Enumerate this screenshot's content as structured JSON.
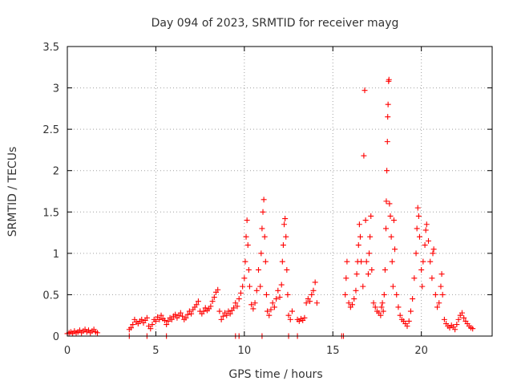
{
  "chart_data": {
    "type": "scatter",
    "title": "Day 094 of 2023, SRMTID for receiver mayg",
    "xlabel": "GPS time / hours",
    "ylabel": "SRMTID / TECUs",
    "xlim": [
      0,
      24
    ],
    "ylim": [
      0,
      3.5
    ],
    "xticks": [
      0,
      5,
      10,
      15,
      20
    ],
    "yticks": [
      0,
      0.5,
      1,
      1.5,
      2,
      2.5,
      3,
      3.5
    ],
    "xtick_labels": [
      "0",
      "5",
      "10",
      "15",
      "20"
    ],
    "ytick_labels": [
      "0",
      "0.5",
      "1",
      "1.5",
      "2",
      "2.5",
      "3",
      "3.5"
    ],
    "grid": true,
    "marker": "+",
    "color": "#ff0000",
    "series": [
      {
        "name": "SRMTID",
        "points": [
          [
            0.0,
            0.03
          ],
          [
            0.1,
            0.04
          ],
          [
            0.2,
            0.05
          ],
          [
            0.3,
            0.03
          ],
          [
            0.4,
            0.06
          ],
          [
            0.5,
            0.04
          ],
          [
            0.6,
            0.05
          ],
          [
            0.7,
            0.07
          ],
          [
            0.8,
            0.04
          ],
          [
            0.9,
            0.06
          ],
          [
            1.0,
            0.08
          ],
          [
            1.1,
            0.05
          ],
          [
            1.2,
            0.07
          ],
          [
            1.3,
            0.04
          ],
          [
            1.4,
            0.06
          ],
          [
            1.5,
            0.08
          ],
          [
            1.6,
            0.05
          ],
          [
            1.7,
            0.04
          ],
          [
            3.5,
            0.0
          ],
          [
            4.5,
            0.0
          ],
          [
            5.6,
            0.0
          ],
          [
            3.5,
            0.08
          ],
          [
            3.6,
            0.1
          ],
          [
            3.7,
            0.14
          ],
          [
            3.8,
            0.2
          ],
          [
            3.9,
            0.17
          ],
          [
            4.0,
            0.15
          ],
          [
            4.1,
            0.18
          ],
          [
            4.2,
            0.2
          ],
          [
            4.3,
            0.16
          ],
          [
            4.4,
            0.19
          ],
          [
            4.5,
            0.22
          ],
          [
            4.6,
            0.12
          ],
          [
            4.7,
            0.09
          ],
          [
            4.8,
            0.14
          ],
          [
            4.9,
            0.2
          ],
          [
            5.0,
            0.18
          ],
          [
            5.1,
            0.23
          ],
          [
            5.2,
            0.2
          ],
          [
            5.3,
            0.25
          ],
          [
            5.4,
            0.21
          ],
          [
            5.5,
            0.19
          ],
          [
            5.6,
            0.14
          ],
          [
            5.7,
            0.18
          ],
          [
            5.8,
            0.22
          ],
          [
            5.9,
            0.2
          ],
          [
            6.0,
            0.24
          ],
          [
            6.1,
            0.26
          ],
          [
            6.2,
            0.22
          ],
          [
            6.3,
            0.25
          ],
          [
            6.4,
            0.28
          ],
          [
            6.5,
            0.24
          ],
          [
            6.6,
            0.2
          ],
          [
            6.7,
            0.22
          ],
          [
            6.8,
            0.26
          ],
          [
            6.9,
            0.3
          ],
          [
            7.0,
            0.27
          ],
          [
            7.1,
            0.32
          ],
          [
            7.2,
            0.35
          ],
          [
            7.3,
            0.38
          ],
          [
            7.4,
            0.42
          ],
          [
            7.5,
            0.3
          ],
          [
            7.6,
            0.27
          ],
          [
            7.7,
            0.3
          ],
          [
            7.8,
            0.34
          ],
          [
            7.9,
            0.31
          ],
          [
            8.0,
            0.33
          ],
          [
            8.1,
            0.36
          ],
          [
            8.2,
            0.42
          ],
          [
            8.3,
            0.47
          ],
          [
            8.4,
            0.53
          ],
          [
            8.5,
            0.56
          ],
          [
            8.6,
            0.3
          ],
          [
            8.7,
            0.2
          ],
          [
            8.8,
            0.24
          ],
          [
            8.9,
            0.28
          ],
          [
            9.0,
            0.25
          ],
          [
            9.1,
            0.3
          ],
          [
            9.2,
            0.27
          ],
          [
            9.3,
            0.31
          ],
          [
            9.4,
            0.34
          ],
          [
            9.5,
            0.4
          ],
          [
            9.6,
            0.36
          ],
          [
            9.7,
            0.45
          ],
          [
            9.8,
            0.52
          ],
          [
            9.9,
            0.6
          ],
          [
            10.0,
            0.7
          ],
          [
            10.05,
            0.9
          ],
          [
            10.1,
            1.2
          ],
          [
            10.15,
            1.4
          ],
          [
            10.2,
            1.1
          ],
          [
            10.25,
            0.8
          ],
          [
            10.3,
            0.6
          ],
          [
            10.4,
            0.38
          ],
          [
            10.5,
            0.33
          ],
          [
            10.6,
            0.4
          ],
          [
            10.7,
            0.55
          ],
          [
            10.8,
            0.8
          ],
          [
            10.9,
            0.6
          ],
          [
            10.95,
            1.0
          ],
          [
            11.0,
            1.3
          ],
          [
            11.05,
            1.5
          ],
          [
            11.1,
            1.65
          ],
          [
            11.15,
            1.2
          ],
          [
            11.2,
            0.9
          ],
          [
            11.25,
            0.5
          ],
          [
            11.3,
            0.3
          ],
          [
            11.4,
            0.25
          ],
          [
            11.5,
            0.32
          ],
          [
            11.6,
            0.4
          ],
          [
            11.7,
            0.35
          ],
          [
            11.8,
            0.45
          ],
          [
            11.9,
            0.55
          ],
          [
            12.0,
            0.47
          ],
          [
            12.1,
            0.62
          ],
          [
            12.15,
            0.9
          ],
          [
            12.2,
            1.1
          ],
          [
            12.25,
            1.35
          ],
          [
            12.3,
            1.42
          ],
          [
            12.35,
            1.2
          ],
          [
            12.4,
            0.8
          ],
          [
            12.45,
            0.5
          ],
          [
            12.5,
            0.25
          ],
          [
            12.6,
            0.2
          ],
          [
            12.7,
            0.3
          ],
          [
            9.5,
            0.0
          ],
          [
            9.7,
            0.0
          ],
          [
            11.0,
            0.0
          ],
          [
            12.5,
            0.0
          ],
          [
            13.0,
            0.0
          ],
          [
            13.0,
            0.2
          ],
          [
            13.1,
            0.18
          ],
          [
            13.2,
            0.21
          ],
          [
            13.3,
            0.19
          ],
          [
            13.4,
            0.22
          ],
          [
            13.5,
            0.4
          ],
          [
            13.6,
            0.45
          ],
          [
            13.7,
            0.42
          ],
          [
            13.8,
            0.5
          ],
          [
            13.9,
            0.55
          ],
          [
            14.0,
            0.65
          ],
          [
            14.1,
            0.4
          ],
          [
            15.5,
            0.0
          ],
          [
            15.6,
            0.0
          ],
          [
            15.7,
            0.5
          ],
          [
            15.75,
            0.7
          ],
          [
            15.8,
            0.9
          ],
          [
            15.9,
            0.4
          ],
          [
            16.0,
            0.35
          ],
          [
            16.1,
            0.38
          ],
          [
            16.2,
            0.45
          ],
          [
            16.3,
            0.55
          ],
          [
            16.35,
            0.75
          ],
          [
            16.4,
            0.9
          ],
          [
            16.45,
            1.1
          ],
          [
            16.5,
            1.35
          ],
          [
            16.55,
            1.2
          ],
          [
            16.6,
            0.9
          ],
          [
            16.7,
            0.6
          ],
          [
            16.75,
            2.18
          ],
          [
            16.8,
            2.97
          ],
          [
            16.85,
            1.4
          ],
          [
            16.9,
            0.9
          ],
          [
            17.0,
            0.75
          ],
          [
            17.05,
            1.0
          ],
          [
            17.1,
            1.2
          ],
          [
            17.15,
            1.45
          ],
          [
            17.2,
            0.8
          ],
          [
            17.3,
            0.4
          ],
          [
            17.4,
            0.35
          ],
          [
            17.5,
            0.3
          ],
          [
            17.6,
            0.28
          ],
          [
            17.7,
            0.25
          ],
          [
            17.75,
            0.35
          ],
          [
            17.8,
            0.4
          ],
          [
            17.85,
            0.3
          ],
          [
            17.9,
            0.5
          ],
          [
            17.95,
            0.8
          ],
          [
            18.0,
            1.3
          ],
          [
            18.02,
            1.63
          ],
          [
            18.05,
            2.0
          ],
          [
            18.08,
            2.35
          ],
          [
            18.1,
            2.65
          ],
          [
            18.12,
            2.8
          ],
          [
            18.15,
            3.08
          ],
          [
            18.17,
            3.1
          ],
          [
            18.2,
            1.6
          ],
          [
            18.25,
            1.45
          ],
          [
            18.3,
            1.2
          ],
          [
            18.35,
            0.9
          ],
          [
            18.4,
            0.6
          ],
          [
            18.45,
            1.4
          ],
          [
            18.5,
            1.05
          ],
          [
            18.6,
            0.5
          ],
          [
            18.7,
            0.35
          ],
          [
            18.8,
            0.25
          ],
          [
            18.9,
            0.2
          ],
          [
            19.0,
            0.18
          ],
          [
            19.1,
            0.15
          ],
          [
            19.2,
            0.12
          ],
          [
            19.3,
            0.18
          ],
          [
            19.4,
            0.3
          ],
          [
            19.5,
            0.45
          ],
          [
            19.6,
            0.7
          ],
          [
            19.7,
            1.0
          ],
          [
            19.75,
            1.3
          ],
          [
            19.8,
            1.55
          ],
          [
            19.85,
            1.45
          ],
          [
            19.9,
            1.2
          ],
          [
            20.0,
            0.8
          ],
          [
            20.05,
            0.6
          ],
          [
            20.1,
            0.9
          ],
          [
            20.2,
            1.1
          ],
          [
            20.25,
            1.28
          ],
          [
            20.3,
            1.35
          ],
          [
            20.4,
            1.15
          ],
          [
            20.5,
            0.9
          ],
          [
            20.6,
            0.7
          ],
          [
            20.65,
            1.0
          ],
          [
            20.7,
            1.05
          ],
          [
            20.8,
            0.5
          ],
          [
            20.9,
            0.35
          ],
          [
            21.0,
            0.4
          ],
          [
            21.1,
            0.6
          ],
          [
            21.15,
            0.75
          ],
          [
            21.2,
            0.5
          ],
          [
            21.3,
            0.2
          ],
          [
            21.4,
            0.15
          ],
          [
            21.5,
            0.12
          ],
          [
            21.6,
            0.1
          ],
          [
            21.7,
            0.13
          ],
          [
            21.8,
            0.11
          ],
          [
            21.9,
            0.08
          ],
          [
            22.0,
            0.14
          ],
          [
            22.1,
            0.2
          ],
          [
            22.2,
            0.25
          ],
          [
            22.3,
            0.28
          ],
          [
            22.4,
            0.22
          ],
          [
            22.5,
            0.18
          ],
          [
            22.6,
            0.15
          ],
          [
            22.7,
            0.12
          ],
          [
            22.8,
            0.1
          ],
          [
            22.9,
            0.09
          ]
        ]
      }
    ]
  }
}
